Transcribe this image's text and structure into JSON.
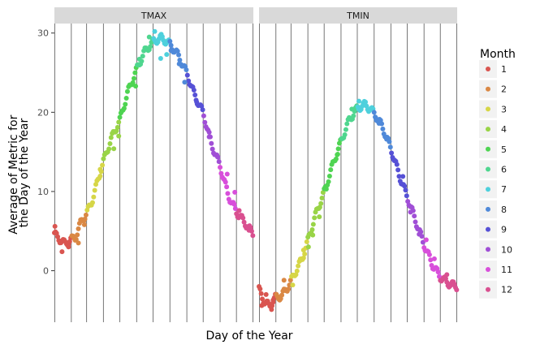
{
  "chart_data": {
    "type": "scatter",
    "title": "",
    "xlabel": "Day of the Year",
    "ylabel": "Average of Metric for the Day of the Year",
    "ylabel_lines": [
      "Average of Metric for",
      "the Day of the Year"
    ],
    "xlim": [
      1,
      366
    ],
    "ylim": [
      -6.5,
      31.2
    ],
    "yticks": [
      0,
      10,
      20,
      30
    ],
    "month_boundaries": [
      32,
      60,
      91,
      121,
      152,
      182,
      213,
      244,
      274,
      305,
      335
    ],
    "grid": true,
    "legend": {
      "title": "Month",
      "placement": "right",
      "entries": [
        "1",
        "2",
        "3",
        "4",
        "5",
        "6",
        "7",
        "8",
        "9",
        "10",
        "11",
        "12"
      ]
    },
    "month_colors": [
      "#d95550",
      "#da8844",
      "#d6d647",
      "#99d447",
      "#4fd452",
      "#4fd68f",
      "#4ed0dc",
      "#4f89d9",
      "#5651d6",
      "#a04fd6",
      "#d84fdb",
      "#d95090"
    ],
    "panels": [
      {
        "name": "TMAX",
        "anchors": [
          [
            1,
            4.6
          ],
          [
            20,
            3.4
          ],
          [
            31,
            3.9
          ],
          [
            40,
            4.2
          ],
          [
            50,
            6.2
          ],
          [
            60,
            7.2
          ],
          [
            70,
            8.8
          ],
          [
            80,
            11.2
          ],
          [
            91,
            13.8
          ],
          [
            105,
            16.6
          ],
          [
            121,
            19.0
          ],
          [
            136,
            22.6
          ],
          [
            152,
            25.4
          ],
          [
            166,
            27.6
          ],
          [
            182,
            28.9
          ],
          [
            197,
            29.4
          ],
          [
            213,
            28.6
          ],
          [
            228,
            27.2
          ],
          [
            244,
            24.9
          ],
          [
            258,
            22.2
          ],
          [
            274,
            19.9
          ],
          [
            289,
            16.0
          ],
          [
            305,
            13.2
          ],
          [
            320,
            9.5
          ],
          [
            335,
            7.4
          ],
          [
            350,
            6.1
          ],
          [
            366,
            4.6
          ]
        ],
        "outliers": [
          [
            2,
            5.6
          ],
          [
            15,
            2.4
          ],
          [
            27,
            3.0
          ],
          [
            45,
            3.5
          ],
          [
            56,
            5.8
          ],
          [
            85,
            12.8
          ],
          [
            110,
            15.4
          ],
          [
            119,
            17.0
          ],
          [
            150,
            23.3
          ],
          [
            157,
            26.7
          ],
          [
            175,
            29.5
          ],
          [
            185,
            30.2
          ],
          [
            196,
            26.8
          ],
          [
            207,
            27.3
          ],
          [
            215,
            27.8
          ],
          [
            230,
            26.1
          ],
          [
            240,
            23.8
          ],
          [
            262,
            21.3
          ],
          [
            285,
            16.9
          ],
          [
            300,
            14.4
          ],
          [
            318,
            12.2
          ],
          [
            332,
            9.9
          ],
          [
            340,
            7.6
          ],
          [
            358,
            5.1
          ]
        ]
      },
      {
        "name": "TMIN",
        "anchors": [
          [
            1,
            -2.4
          ],
          [
            10,
            -3.8
          ],
          [
            20,
            -4.5
          ],
          [
            31,
            -3.4
          ],
          [
            42,
            -3.2
          ],
          [
            52,
            -2.3
          ],
          [
            60,
            -1.3
          ],
          [
            70,
            0.1
          ],
          [
            81,
            1.6
          ],
          [
            91,
            3.8
          ],
          [
            106,
            7.2
          ],
          [
            121,
            9.9
          ],
          [
            136,
            13.2
          ],
          [
            152,
            16.3
          ],
          [
            167,
            19.0
          ],
          [
            182,
            20.5
          ],
          [
            197,
            21.0
          ],
          [
            213,
            19.9
          ],
          [
            228,
            18.2
          ],
          [
            244,
            15.4
          ],
          [
            259,
            12.1
          ],
          [
            274,
            9.3
          ],
          [
            289,
            6.4
          ],
          [
            305,
            3.3
          ],
          [
            320,
            0.8
          ],
          [
            335,
            -0.8
          ],
          [
            350,
            -1.6
          ],
          [
            366,
            -2.0
          ]
        ],
        "outliers": [
          [
            6,
            -4.4
          ],
          [
            14,
            -3.0
          ],
          [
            24,
            -4.9
          ],
          [
            27,
            -3.7
          ],
          [
            47,
            -1.2
          ],
          [
            63,
            -1.8
          ],
          [
            77,
            1.3
          ],
          [
            83,
            2.6
          ],
          [
            92,
            3.0
          ],
          [
            100,
            4.5
          ],
          [
            112,
            6.8
          ],
          [
            125,
            10.3
          ],
          [
            146,
            14.7
          ],
          [
            172,
            20.4
          ],
          [
            185,
            21.4
          ],
          [
            203,
            20.1
          ],
          [
            216,
            19.3
          ],
          [
            222,
            18.6
          ],
          [
            236,
            16.6
          ],
          [
            250,
            13.9
          ],
          [
            266,
            11.9
          ],
          [
            280,
            7.4
          ],
          [
            296,
            4.6
          ],
          [
            309,
            3.9
          ],
          [
            324,
            1.5
          ],
          [
            347,
            -0.5
          ],
          [
            360,
            -1.8
          ]
        ]
      }
    ]
  }
}
